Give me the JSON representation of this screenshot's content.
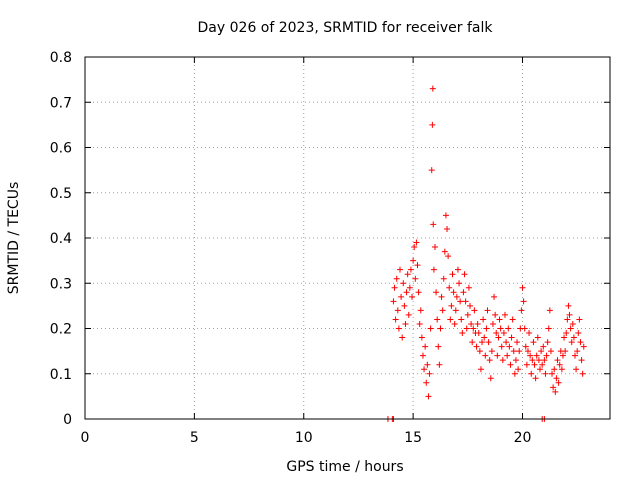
{
  "chart_data": {
    "type": "scatter",
    "title": "Day 026 of 2023, SRMTID for receiver falk",
    "xlabel": "GPS time / hours",
    "ylabel": "SRMTID / TECUs",
    "xlim": [
      0,
      24
    ],
    "ylim": [
      0,
      0.8
    ],
    "x_ticks": [
      0,
      5,
      10,
      15,
      20
    ],
    "y_ticks": [
      0,
      0.1,
      0.2,
      0.3,
      0.4,
      0.5,
      0.6,
      0.7,
      0.8
    ],
    "x_tick_labels": [
      "0",
      "5",
      "10",
      "15",
      "20"
    ],
    "y_tick_labels": [
      "0",
      "0.1",
      "0.2",
      "0.3",
      "0.4",
      "0.5",
      "0.6",
      "0.7",
      "0.8"
    ],
    "grid": true,
    "marker": "+",
    "color": "#ff0000",
    "series": [
      {
        "name": "SRMTID",
        "points": [
          [
            13.85,
            0.0
          ],
          [
            14.05,
            0.0
          ],
          [
            14.1,
            0.0
          ],
          [
            20.9,
            0.0
          ],
          [
            21.0,
            0.0
          ],
          [
            14.1,
            0.26
          ],
          [
            14.15,
            0.29
          ],
          [
            14.2,
            0.22
          ],
          [
            14.25,
            0.31
          ],
          [
            14.3,
            0.24
          ],
          [
            14.35,
            0.2
          ],
          [
            14.4,
            0.33
          ],
          [
            14.45,
            0.27
          ],
          [
            14.5,
            0.18
          ],
          [
            14.55,
            0.3
          ],
          [
            14.6,
            0.25
          ],
          [
            14.65,
            0.21
          ],
          [
            14.7,
            0.28
          ],
          [
            14.75,
            0.32
          ],
          [
            14.8,
            0.23
          ],
          [
            14.85,
            0.29
          ],
          [
            14.9,
            0.33
          ],
          [
            14.95,
            0.27
          ],
          [
            15.0,
            0.35
          ],
          [
            15.05,
            0.38
          ],
          [
            15.1,
            0.31
          ],
          [
            15.15,
            0.39
          ],
          [
            15.2,
            0.34
          ],
          [
            15.25,
            0.28
          ],
          [
            15.3,
            0.21
          ],
          [
            15.35,
            0.24
          ],
          [
            15.4,
            0.18
          ],
          [
            15.45,
            0.14
          ],
          [
            15.5,
            0.11
          ],
          [
            15.55,
            0.16
          ],
          [
            15.6,
            0.08
          ],
          [
            15.65,
            0.12
          ],
          [
            15.7,
            0.05
          ],
          [
            15.75,
            0.1
          ],
          [
            15.8,
            0.2
          ],
          [
            15.85,
            0.55
          ],
          [
            15.88,
            0.65
          ],
          [
            15.9,
            0.73
          ],
          [
            15.92,
            0.43
          ],
          [
            15.95,
            0.33
          ],
          [
            16.0,
            0.38
          ],
          [
            16.05,
            0.28
          ],
          [
            16.1,
            0.22
          ],
          [
            16.15,
            0.16
          ],
          [
            16.2,
            0.12
          ],
          [
            16.25,
            0.2
          ],
          [
            16.3,
            0.27
          ],
          [
            16.35,
            0.24
          ],
          [
            16.4,
            0.31
          ],
          [
            16.45,
            0.37
          ],
          [
            16.5,
            0.45
          ],
          [
            16.55,
            0.42
          ],
          [
            16.6,
            0.36
          ],
          [
            16.65,
            0.29
          ],
          [
            16.7,
            0.22
          ],
          [
            16.75,
            0.25
          ],
          [
            16.8,
            0.32
          ],
          [
            16.85,
            0.28
          ],
          [
            16.9,
            0.21
          ],
          [
            16.95,
            0.24
          ],
          [
            17.0,
            0.27
          ],
          [
            17.05,
            0.33
          ],
          [
            17.1,
            0.3
          ],
          [
            17.15,
            0.26
          ],
          [
            17.2,
            0.22
          ],
          [
            17.25,
            0.19
          ],
          [
            17.3,
            0.28
          ],
          [
            17.35,
            0.32
          ],
          [
            17.4,
            0.26
          ],
          [
            17.45,
            0.2
          ],
          [
            17.5,
            0.23
          ],
          [
            17.55,
            0.29
          ],
          [
            17.6,
            0.25
          ],
          [
            17.65,
            0.21
          ],
          [
            17.7,
            0.17
          ],
          [
            17.75,
            0.2
          ],
          [
            17.8,
            0.24
          ],
          [
            17.85,
            0.19
          ],
          [
            17.9,
            0.16
          ],
          [
            17.95,
            0.21
          ],
          [
            18.0,
            0.19
          ],
          [
            18.05,
            0.15
          ],
          [
            18.1,
            0.11
          ],
          [
            18.15,
            0.17
          ],
          [
            18.2,
            0.22
          ],
          [
            18.25,
            0.18
          ],
          [
            18.3,
            0.14
          ],
          [
            18.35,
            0.2
          ],
          [
            18.4,
            0.24
          ],
          [
            18.45,
            0.17
          ],
          [
            18.5,
            0.13
          ],
          [
            18.55,
            0.09
          ],
          [
            18.6,
            0.15
          ],
          [
            18.65,
            0.21
          ],
          [
            18.7,
            0.27
          ],
          [
            18.75,
            0.23
          ],
          [
            18.8,
            0.19
          ],
          [
            18.85,
            0.14
          ],
          [
            18.9,
            0.18
          ],
          [
            18.95,
            0.22
          ],
          [
            19.0,
            0.2
          ],
          [
            19.05,
            0.16
          ],
          [
            19.1,
            0.13
          ],
          [
            19.15,
            0.19
          ],
          [
            19.2,
            0.23
          ],
          [
            19.25,
            0.17
          ],
          [
            19.3,
            0.14
          ],
          [
            19.35,
            0.2
          ],
          [
            19.4,
            0.16
          ],
          [
            19.45,
            0.12
          ],
          [
            19.5,
            0.18
          ],
          [
            19.55,
            0.22
          ],
          [
            19.6,
            0.15
          ],
          [
            19.65,
            0.1
          ],
          [
            19.7,
            0.13
          ],
          [
            19.75,
            0.17
          ],
          [
            19.8,
            0.11
          ],
          [
            19.85,
            0.15
          ],
          [
            19.9,
            0.2
          ],
          [
            19.95,
            0.24
          ],
          [
            20.0,
            0.29
          ],
          [
            20.05,
            0.26
          ],
          [
            20.1,
            0.2
          ],
          [
            20.15,
            0.16
          ],
          [
            20.2,
            0.12
          ],
          [
            20.25,
            0.15
          ],
          [
            20.3,
            0.19
          ],
          [
            20.35,
            0.14
          ],
          [
            20.4,
            0.1
          ],
          [
            20.45,
            0.13
          ],
          [
            20.5,
            0.17
          ],
          [
            20.55,
            0.12
          ],
          [
            20.6,
            0.09
          ],
          [
            20.65,
            0.14
          ],
          [
            20.7,
            0.18
          ],
          [
            20.75,
            0.13
          ],
          [
            20.8,
            0.11
          ],
          [
            20.85,
            0.15
          ],
          [
            20.9,
            0.12
          ],
          [
            20.95,
            0.16
          ],
          [
            21.0,
            0.13
          ],
          [
            21.05,
            0.1
          ],
          [
            21.1,
            0.14
          ],
          [
            21.15,
            0.17
          ],
          [
            21.2,
            0.2
          ],
          [
            21.25,
            0.24
          ],
          [
            21.3,
            0.15
          ],
          [
            21.35,
            0.1
          ],
          [
            21.4,
            0.07
          ],
          [
            21.45,
            0.11
          ],
          [
            21.5,
            0.06
          ],
          [
            21.55,
            0.09
          ],
          [
            21.6,
            0.13
          ],
          [
            21.65,
            0.08
          ],
          [
            21.7,
            0.12
          ],
          [
            21.75,
            0.15
          ],
          [
            21.8,
            0.11
          ],
          [
            21.85,
            0.14
          ],
          [
            21.9,
            0.18
          ],
          [
            21.95,
            0.15
          ],
          [
            22.0,
            0.19
          ],
          [
            22.05,
            0.22
          ],
          [
            22.1,
            0.25
          ],
          [
            22.15,
            0.23
          ],
          [
            22.2,
            0.2
          ],
          [
            22.25,
            0.17
          ],
          [
            22.3,
            0.21
          ],
          [
            22.35,
            0.18
          ],
          [
            22.4,
            0.14
          ],
          [
            22.45,
            0.11
          ],
          [
            22.5,
            0.15
          ],
          [
            22.55,
            0.19
          ],
          [
            22.6,
            0.22
          ],
          [
            22.65,
            0.17
          ],
          [
            22.7,
            0.13
          ],
          [
            22.75,
            0.1
          ],
          [
            22.8,
            0.16
          ]
        ]
      }
    ]
  }
}
